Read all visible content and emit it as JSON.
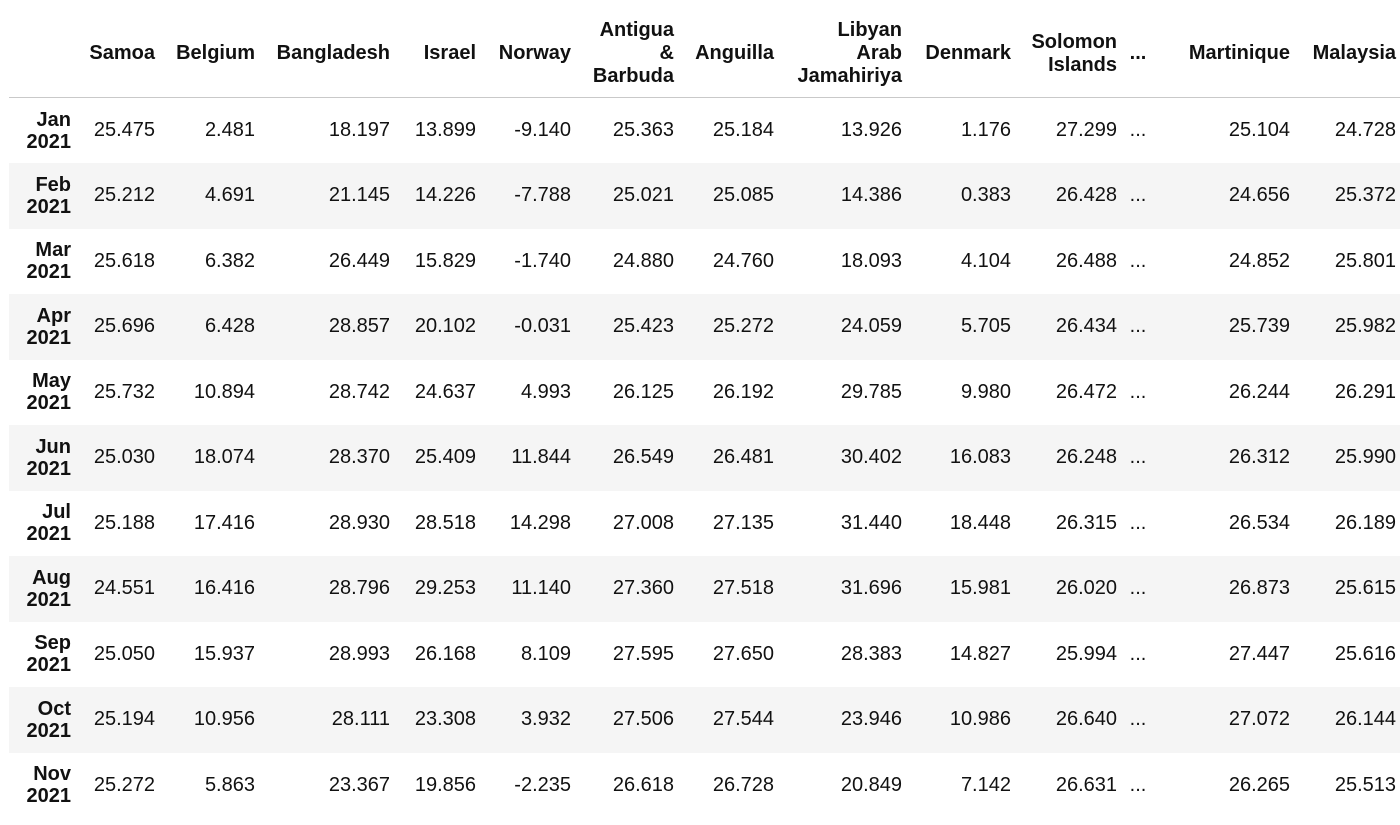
{
  "columns": [
    "Samoa",
    "Belgium",
    "Bangladesh",
    "Israel",
    "Norway",
    "Antigua & Barbuda",
    "Anguilla",
    "Libyan Arab Jamahiriya",
    "Denmark",
    "Solomon Islands",
    "...",
    "Martinique",
    "Malaysia"
  ],
  "header_lines": {
    "antigua": [
      "Antigua",
      "&",
      "Barbuda"
    ],
    "libya": [
      "Libyan",
      "Arab",
      "Jamahiriya"
    ],
    "solomon": [
      "Solomon",
      "Islands"
    ]
  },
  "rows": [
    {
      "month": "Jan",
      "year": "2021",
      "values": [
        "25.475",
        "2.481",
        "18.197",
        "13.899",
        "-9.140",
        "25.363",
        "25.184",
        "13.926",
        "1.176",
        "27.299",
        "...",
        "25.104",
        "24.728"
      ]
    },
    {
      "month": "Feb",
      "year": "2021",
      "values": [
        "25.212",
        "4.691",
        "21.145",
        "14.226",
        "-7.788",
        "25.021",
        "25.085",
        "14.386",
        "0.383",
        "26.428",
        "...",
        "24.656",
        "25.372"
      ]
    },
    {
      "month": "Mar",
      "year": "2021",
      "values": [
        "25.618",
        "6.382",
        "26.449",
        "15.829",
        "-1.740",
        "24.880",
        "24.760",
        "18.093",
        "4.104",
        "26.488",
        "...",
        "24.852",
        "25.801"
      ]
    },
    {
      "month": "Apr",
      "year": "2021",
      "values": [
        "25.696",
        "6.428",
        "28.857",
        "20.102",
        "-0.031",
        "25.423",
        "25.272",
        "24.059",
        "5.705",
        "26.434",
        "...",
        "25.739",
        "25.982"
      ]
    },
    {
      "month": "May",
      "year": "2021",
      "values": [
        "25.732",
        "10.894",
        "28.742",
        "24.637",
        "4.993",
        "26.125",
        "26.192",
        "29.785",
        "9.980",
        "26.472",
        "...",
        "26.244",
        "26.291"
      ]
    },
    {
      "month": "Jun",
      "year": "2021",
      "values": [
        "25.030",
        "18.074",
        "28.370",
        "25.409",
        "11.844",
        "26.549",
        "26.481",
        "30.402",
        "16.083",
        "26.248",
        "...",
        "26.312",
        "25.990"
      ]
    },
    {
      "month": "Jul",
      "year": "2021",
      "values": [
        "25.188",
        "17.416",
        "28.930",
        "28.518",
        "14.298",
        "27.008",
        "27.135",
        "31.440",
        "18.448",
        "26.315",
        "...",
        "26.534",
        "26.189"
      ]
    },
    {
      "month": "Aug",
      "year": "2021",
      "values": [
        "24.551",
        "16.416",
        "28.796",
        "29.253",
        "11.140",
        "27.360",
        "27.518",
        "31.696",
        "15.981",
        "26.020",
        "...",
        "26.873",
        "25.615"
      ]
    },
    {
      "month": "Sep",
      "year": "2021",
      "values": [
        "25.050",
        "15.937",
        "28.993",
        "26.168",
        "8.109",
        "27.595",
        "27.650",
        "28.383",
        "14.827",
        "25.994",
        "...",
        "27.447",
        "25.616"
      ]
    },
    {
      "month": "Oct",
      "year": "2021",
      "values": [
        "25.194",
        "10.956",
        "28.111",
        "23.308",
        "3.932",
        "27.506",
        "27.544",
        "23.946",
        "10.986",
        "26.640",
        "...",
        "27.072",
        "26.144"
      ]
    },
    {
      "month": "Nov",
      "year": "2021",
      "values": [
        "25.272",
        "5.863",
        "23.367",
        "19.856",
        "-2.235",
        "26.618",
        "26.728",
        "20.849",
        "7.142",
        "26.631",
        "...",
        "26.265",
        "25.513"
      ]
    }
  ]
}
